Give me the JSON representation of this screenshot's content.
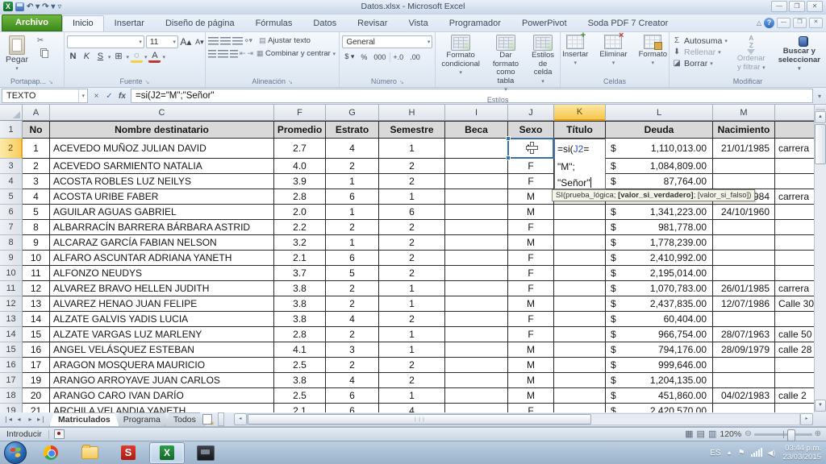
{
  "titlebar": {
    "title": "Datos.xlsx - Microsoft Excel"
  },
  "ribbon_tabs": [
    "Archivo",
    "Inicio",
    "Insertar",
    "Diseño de página",
    "Fórmulas",
    "Datos",
    "Revisar",
    "Vista",
    "Programador",
    "PowerPivot",
    "Soda PDF 7 Creator"
  ],
  "ribbon": {
    "clipboard": {
      "label": "Portapap...",
      "paste": "Pegar"
    },
    "font": {
      "label": "Fuente",
      "font_size": "11",
      "bold": "N",
      "italic": "K",
      "underline": "S"
    },
    "alignment": {
      "label": "Alineación",
      "wrap_text": "Ajustar texto",
      "merge_center": "Combinar y centrar"
    },
    "number": {
      "label": "Número",
      "format": "General",
      "currency": "$",
      "percent": "%",
      "thousands": "000",
      "inc_dec": "+.0",
      "dec_dec": ".00"
    },
    "styles": {
      "label": "Estilos",
      "conditional": "Formato condicional",
      "format_table": "Dar formato como tabla",
      "cell_styles": "Estilos de celda"
    },
    "cells": {
      "label": "Celdas",
      "insert": "Insertar",
      "delete": "Eliminar",
      "format": "Formato"
    },
    "editing": {
      "label": "Modificar",
      "autosum": "Autosuma",
      "fill": "Rellenar",
      "clear": "Borrar",
      "sort_1": "Ordenar",
      "sort_2": "y filtrar",
      "find_1": "Buscar y",
      "find_2": "seleccionar"
    }
  },
  "formula_bar": {
    "name_box": "TEXTO",
    "formula": "=si(J2=\"M\";\"Señor\""
  },
  "grid": {
    "column_letters": [
      "A",
      "C",
      "F",
      "G",
      "H",
      "I",
      "J",
      "K",
      "L",
      "M",
      ""
    ],
    "selected_column": "K",
    "selected_row": 2,
    "header_labels": {
      "A": "No",
      "C": "Nombre destinatario",
      "F": "Promedio",
      "G": "Estrato",
      "H": "Semestre",
      "I": "Beca",
      "J": "Sexo",
      "K": "Título",
      "L": "Deuda",
      "M": "Nacimiento",
      "N": ""
    },
    "rows": [
      {
        "n": 2,
        "no": "1",
        "nombre": "ACEVEDO MUÑOZ JULIAN DAVID",
        "promedio": "2.7",
        "estrato": "4",
        "semestre": "1",
        "beca": "",
        "sexo": "M",
        "titulo": "",
        "deuda": "1,110,013.00",
        "nacimiento": "21/01/1985",
        "extra": "carrera"
      },
      {
        "n": 3,
        "no": "2",
        "nombre": "ACEVEDO SARMIENTO NATALIA",
        "promedio": "4.0",
        "estrato": "2",
        "semestre": "2",
        "beca": "",
        "sexo": "F",
        "titulo": "",
        "deuda": "1,084,809.00",
        "nacimiento": "",
        "extra": ""
      },
      {
        "n": 4,
        "no": "3",
        "nombre": "ACOSTA ROBLES LUZ NEILYS",
        "promedio": "3.9",
        "estrato": "1",
        "semestre": "2",
        "beca": "",
        "sexo": "F",
        "titulo": "",
        "deuda": "87,764.00",
        "nacimiento": "",
        "extra": ""
      },
      {
        "n": 5,
        "no": "4",
        "nombre": "ACOSTA URIBE FABER",
        "promedio": "2.8",
        "estrato": "6",
        "semestre": "1",
        "beca": "",
        "sexo": "M",
        "titulo": "",
        "deuda": "",
        "nacimiento": "984",
        "extra": "carrera"
      },
      {
        "n": 6,
        "no": "5",
        "nombre": "AGUILAR AGUAS GABRIEL",
        "promedio": "2.0",
        "estrato": "1",
        "semestre": "6",
        "beca": "",
        "sexo": "M",
        "titulo": "",
        "deuda": "1,341,223.00",
        "nacimiento": "24/10/1960",
        "extra": ""
      },
      {
        "n": 7,
        "no": "8",
        "nombre": "ALBARRACÍN BARRERA BÁRBARA ASTRID",
        "promedio": "2.2",
        "estrato": "2",
        "semestre": "2",
        "beca": "",
        "sexo": "F",
        "titulo": "",
        "deuda": "981,778.00",
        "nacimiento": "",
        "extra": ""
      },
      {
        "n": 8,
        "no": "9",
        "nombre": "ALCARAZ GARCÍA FABIAN NELSON",
        "promedio": "3.2",
        "estrato": "1",
        "semestre": "2",
        "beca": "",
        "sexo": "M",
        "titulo": "",
        "deuda": "1,778,239.00",
        "nacimiento": "",
        "extra": ""
      },
      {
        "n": 9,
        "no": "10",
        "nombre": "ALFARO ASCUNTAR ADRIANA YANETH",
        "promedio": "2.1",
        "estrato": "6",
        "semestre": "2",
        "beca": "",
        "sexo": "F",
        "titulo": "",
        "deuda": "2,410,992.00",
        "nacimiento": "",
        "extra": ""
      },
      {
        "n": 10,
        "no": "11",
        "nombre": "ALFONZO NEUDYS",
        "promedio": "3.7",
        "estrato": "5",
        "semestre": "2",
        "beca": "",
        "sexo": "F",
        "titulo": "",
        "deuda": "2,195,014.00",
        "nacimiento": "",
        "extra": ""
      },
      {
        "n": 11,
        "no": "12",
        "nombre": "ALVAREZ BRAVO HELLEN JUDITH",
        "promedio": "3.8",
        "estrato": "2",
        "semestre": "1",
        "beca": "",
        "sexo": "F",
        "titulo": "",
        "deuda": "1,070,783.00",
        "nacimiento": "26/01/1985",
        "extra": "carrera"
      },
      {
        "n": 12,
        "no": "13",
        "nombre": "ALVAREZ HENAO JUAN FELIPE",
        "promedio": "3.8",
        "estrato": "2",
        "semestre": "1",
        "beca": "",
        "sexo": "M",
        "titulo": "",
        "deuda": "2,437,835.00",
        "nacimiento": "12/07/1986",
        "extra": "Calle 30"
      },
      {
        "n": 13,
        "no": "14",
        "nombre": "ALZATE GALVIS YADIS LUCIA",
        "promedio": "3.8",
        "estrato": "4",
        "semestre": "2",
        "beca": "",
        "sexo": "F",
        "titulo": "",
        "deuda": "60,404.00",
        "nacimiento": "",
        "extra": ""
      },
      {
        "n": 14,
        "no": "15",
        "nombre": "ALZATE VARGAS LUZ MARLENY",
        "promedio": "2.8",
        "estrato": "2",
        "semestre": "1",
        "beca": "",
        "sexo": "F",
        "titulo": "",
        "deuda": "966,754.00",
        "nacimiento": "28/07/1963",
        "extra": "calle 50"
      },
      {
        "n": 15,
        "no": "16",
        "nombre": "ANGEL VELÁSQUEZ ESTEBAN",
        "promedio": "4.1",
        "estrato": "3",
        "semestre": "1",
        "beca": "",
        "sexo": "M",
        "titulo": "",
        "deuda": "794,176.00",
        "nacimiento": "28/09/1979",
        "extra": "calle 28"
      },
      {
        "n": 16,
        "no": "17",
        "nombre": "ARAGON MOSQUERA MAURICIO",
        "promedio": "2.5",
        "estrato": "2",
        "semestre": "2",
        "beca": "",
        "sexo": "M",
        "titulo": "",
        "deuda": "999,646.00",
        "nacimiento": "",
        "extra": ""
      },
      {
        "n": 17,
        "no": "19",
        "nombre": "ARANGO ARROYAVE JUAN CARLOS",
        "promedio": "3.8",
        "estrato": "4",
        "semestre": "2",
        "beca": "",
        "sexo": "M",
        "titulo": "",
        "deuda": "1,204,135.00",
        "nacimiento": "",
        "extra": ""
      },
      {
        "n": 18,
        "no": "20",
        "nombre": "ARANGO CARO IVAN DARÍO",
        "promedio": "2.5",
        "estrato": "6",
        "semestre": "1",
        "beca": "",
        "sexo": "M",
        "titulo": "",
        "deuda": "451,860.00",
        "nacimiento": "04/02/1983",
        "extra": "calle 2"
      },
      {
        "n": 19,
        "no": "21",
        "nombre": "ARCHILA VELANDIA YANETH",
        "promedio": "2.1",
        "estrato": "6",
        "semestre": "4",
        "beca": "",
        "sexo": "F",
        "titulo": "",
        "deuda": "2,420,570.00",
        "nacimiento": "",
        "extra": ""
      }
    ],
    "currency_symbol": "$",
    "edit_cell": {
      "line1_pre": "=si(",
      "ref": "J2",
      "line1_post": "=",
      "line2": "\"M\";",
      "line3": "\"Señor\""
    },
    "tooltip": {
      "pre": "SI(prueba_lógica; ",
      "bold": "[valor_si_verdadero]",
      "post": "; [valor_si_falso])"
    }
  },
  "sheet_bar": {
    "tabs": [
      "Matriculados",
      "Programa",
      "Todos"
    ],
    "active_tab": "Matriculados"
  },
  "status_bar": {
    "mode": "Introducir",
    "zoom": "120%"
  },
  "taskbar": {
    "language": "ES",
    "time": "03:44 p.m.",
    "date": "23/03/2015"
  }
}
